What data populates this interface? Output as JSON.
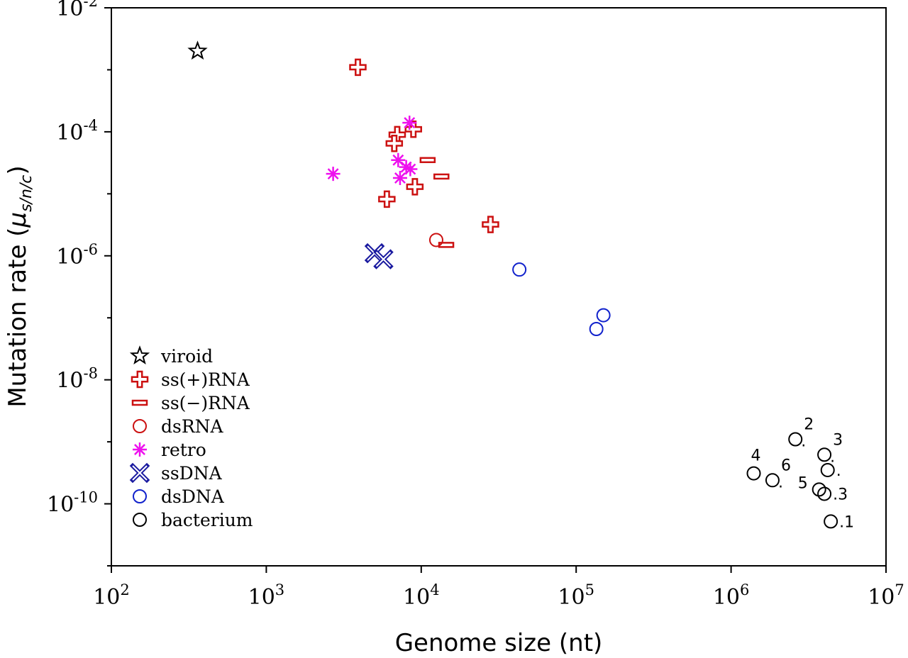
{
  "chart_data": {
    "type": "scatter",
    "xlabel": "Genome size (nt)",
    "ylabel_main": "Mutation rate (",
    "ylabel_mu": "μ",
    "ylabel_sub": "s/n/c",
    "ylabel_close": ")",
    "x_scale": "log",
    "y_scale": "log",
    "xlim": [
      100,
      10000000
    ],
    "ylim": [
      1e-11,
      0.01
    ],
    "x_ticks": [
      {
        "base": "10",
        "exp": "2",
        "value": 100
      },
      {
        "base": "10",
        "exp": "3",
        "value": 1000
      },
      {
        "base": "10",
        "exp": "4",
        "value": 10000
      },
      {
        "base": "10",
        "exp": "5",
        "value": 100000
      },
      {
        "base": "10",
        "exp": "6",
        "value": 1000000
      },
      {
        "base": "10",
        "exp": "7",
        "value": 10000000
      }
    ],
    "y_ticks": [
      {
        "base": "10",
        "exp": "-2",
        "value": 0.01
      },
      {
        "base": "10",
        "exp": "-4",
        "value": 0.0001
      },
      {
        "base": "10",
        "exp": "-6",
        "value": 1e-06
      },
      {
        "base": "10",
        "exp": "-8",
        "value": 1e-08
      },
      {
        "base": "10",
        "exp": "-10",
        "value": 1e-10
      }
    ],
    "legend_position": "lower-left",
    "grid": false,
    "series": [
      {
        "name": "viroid",
        "marker": "star",
        "color": "#000000",
        "points": [
          [
            360,
            0.002
          ]
        ]
      },
      {
        "name": "ss(+)RNA",
        "marker": "plus",
        "color": "#cc1111",
        "points": [
          [
            3900,
            0.0011
          ],
          [
            8900,
            0.00011
          ],
          [
            7000,
            9e-05
          ],
          [
            6700,
            6.5e-05
          ],
          [
            9100,
            1.3e-05
          ],
          [
            6000,
            8.2e-06
          ],
          [
            28000,
            3.2e-06
          ]
        ]
      },
      {
        "name": "ss(−)RNA",
        "marker": "dash",
        "color": "#cc1111",
        "points": [
          [
            11000,
            3.5e-05
          ],
          [
            13500,
            1.9e-05
          ],
          [
            14500,
            1.5e-06
          ]
        ]
      },
      {
        "name": "dsRNA",
        "marker": "circle",
        "color": "#cc1111",
        "points": [
          [
            12500,
            1.8e-06
          ]
        ]
      },
      {
        "name": "retro",
        "marker": "asterisk",
        "color": "#ee11ee",
        "points": [
          [
            2700,
            2.1e-05
          ],
          [
            8400,
            0.00014
          ],
          [
            7100,
            3.5e-05
          ],
          [
            8000,
            2.7e-05
          ],
          [
            8500,
            2.5e-05
          ],
          [
            7300,
            1.8e-05
          ]
        ]
      },
      {
        "name": "ssDNA",
        "marker": "cross",
        "color": "#1a1aa0",
        "points": [
          [
            5000,
            1.1e-06
          ],
          [
            5700,
            8.8e-07
          ]
        ]
      },
      {
        "name": "dsDNA",
        "marker": "circle",
        "color": "#1122cc",
        "points": [
          [
            43000,
            6e-07
          ],
          [
            150000,
            1.1e-07
          ],
          [
            135000,
            6.6e-08
          ]
        ]
      },
      {
        "name": "bacterium",
        "marker": "circle",
        "color": "#000000",
        "points": [
          [
            1400000,
            3.1e-10
          ],
          [
            1850000,
            2.4e-10
          ],
          [
            2600000,
            1.1e-09
          ],
          [
            4000000,
            6.2e-10
          ],
          [
            4200000,
            3.5e-10
          ],
          [
            3700000,
            1.7e-10
          ],
          [
            4000000,
            1.45e-10
          ],
          [
            4400000,
            5.2e-11
          ]
        ]
      }
    ],
    "annotations": [
      {
        "text": "2",
        "x": 2600000,
        "y": 1.1e-09,
        "dir": "ne"
      },
      {
        "text": "3",
        "x": 4000000,
        "y": 6.2e-10,
        "dir": "ne"
      },
      {
        "text": "4",
        "x": 1400000,
        "y": 3.1e-10,
        "dir": "n"
      },
      {
        "text": "6",
        "x": 1850000,
        "y": 2.4e-10,
        "dir": "ne"
      },
      {
        "text": "5",
        "x": 3700000,
        "y": 1.7e-10,
        "dir": "nw"
      },
      {
        "text": ".3",
        "x": 4000000,
        "y": 1.45e-10,
        "dir": "e"
      },
      {
        "text": ".1",
        "x": 4400000,
        "y": 5.2e-11,
        "dir": "e"
      },
      {
        "text": ".",
        "x": 4200000,
        "y": 3.5e-10,
        "dir": "e"
      },
      {
        "text": ".",
        "x": 4000000,
        "y": 6.2e-10,
        "dir": "se"
      },
      {
        "text": ".",
        "x": 2600000,
        "y": 1.1e-09,
        "dir": "se"
      },
      {
        "text": ".",
        "x": 1850000,
        "y": 2.4e-10,
        "dir": "se"
      }
    ]
  }
}
